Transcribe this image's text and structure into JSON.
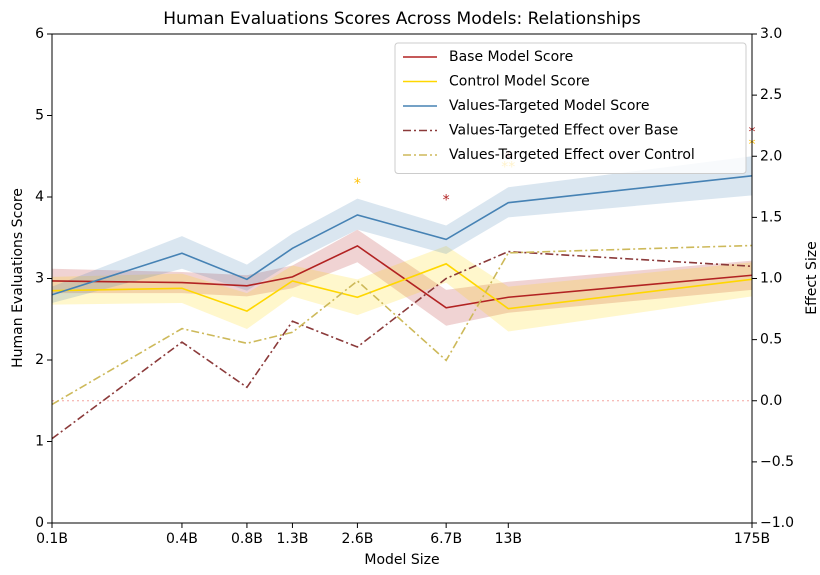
{
  "chart_data": {
    "type": "line",
    "title": "Human Evaluations Scores Across Models: Relationships",
    "x_label": "Model Size",
    "y_label": "Human Evaluations Score",
    "y2_label": "Effect Size",
    "x": [
      0.1,
      0.4,
      0.8,
      1.3,
      2.6,
      6.7,
      13,
      175
    ],
    "xscale": "log",
    "xlim": [
      0.1,
      175
    ],
    "xticks": [
      {
        "value": 0.1,
        "label": "0.1B"
      },
      {
        "value": 0.4,
        "label": "0.4B"
      },
      {
        "value": 0.8,
        "label": "0.8B"
      },
      {
        "value": 1.3,
        "label": "1.3B"
      },
      {
        "value": 2.6,
        "label": "2.6B"
      },
      {
        "value": 6.7,
        "label": "6.7B"
      },
      {
        "value": 13,
        "label": "13B"
      },
      {
        "value": 175,
        "label": "175B"
      }
    ],
    "ylim": [
      0,
      6
    ],
    "yticks": [
      0,
      1,
      2,
      3,
      4,
      5,
      6
    ],
    "y2lim": [
      -1,
      3
    ],
    "y2ticks": [
      {
        "value": -1,
        "label": "−1.0"
      },
      {
        "value": -0.5,
        "label": "−0.5"
      },
      {
        "value": 0,
        "label": "0.0"
      },
      {
        "value": 0.5,
        "label": "0.5"
      },
      {
        "value": 1,
        "label": "1.0"
      },
      {
        "value": 1.5,
        "label": "1.5"
      },
      {
        "value": 2,
        "label": "2.0"
      },
      {
        "value": 2.5,
        "label": "2.5"
      },
      {
        "value": 3,
        "label": "3.0"
      }
    ],
    "legend": "upper right",
    "series": [
      {
        "name": "Base Model Score",
        "color": "#b22222",
        "dash": "solid",
        "values": [
          2.97,
          2.95,
          2.91,
          3.02,
          3.4,
          2.64,
          2.77,
          3.04
        ],
        "lower": [
          2.82,
          2.82,
          2.78,
          2.88,
          3.2,
          2.42,
          2.58,
          2.86
        ],
        "upper": [
          3.12,
          3.08,
          3.04,
          3.16,
          3.6,
          2.86,
          2.96,
          3.22
        ]
      },
      {
        "name": "Control Model Score",
        "color": "#ffd700",
        "dash": "solid",
        "values": [
          2.85,
          2.88,
          2.6,
          2.97,
          2.77,
          3.18,
          2.63,
          2.99
        ],
        "lower": [
          2.68,
          2.7,
          2.38,
          2.78,
          2.55,
          2.95,
          2.35,
          2.78
        ],
        "upper": [
          3.02,
          3.06,
          2.82,
          3.16,
          2.99,
          3.4,
          2.9,
          3.2
        ]
      },
      {
        "name": "Values-Targeted Model Score",
        "color": "#4682b4",
        "dash": "solid",
        "values": [
          2.8,
          3.31,
          2.99,
          3.37,
          3.78,
          3.48,
          3.93,
          4.26
        ],
        "lower": [
          2.7,
          3.12,
          2.85,
          3.2,
          3.6,
          3.3,
          3.75,
          4.02
        ],
        "upper": [
          2.9,
          3.52,
          3.17,
          3.55,
          3.98,
          3.65,
          4.12,
          4.5
        ]
      },
      {
        "name": "Values-Targeted Effect over Base",
        "color": "#8b3a3a",
        "dash": "dashdot",
        "axis": "y2",
        "values": [
          -0.31,
          0.48,
          0.11,
          0.65,
          0.44,
          1.0,
          1.22,
          1.1
        ]
      },
      {
        "name": "Values-Targeted Effect over Control",
        "color": "#cdb95a",
        "dash": "dashdot",
        "axis": "y2",
        "values": [
          -0.03,
          0.59,
          0.47,
          0.56,
          0.98,
          0.33,
          1.21,
          1.27
        ]
      }
    ],
    "hline": {
      "value": 0,
      "axis": "y2",
      "color": "#f4a6a0"
    },
    "annotations": [
      {
        "x": 2.6,
        "y": 4.16,
        "text": "*",
        "color": "#ffc107"
      },
      {
        "x": 6.7,
        "y": 3.96,
        "text": "*",
        "color": "#b22222"
      },
      {
        "x": 13,
        "y": 4.47,
        "text": "*",
        "color": "#b22222"
      },
      {
        "x": 13,
        "y": 4.36,
        "text": "**",
        "color": "#ffc107"
      },
      {
        "x": 175,
        "y": 4.79,
        "text": "*",
        "color": "#b22222"
      },
      {
        "x": 175,
        "y": 4.64,
        "text": "*",
        "color": "#ffc107"
      }
    ]
  }
}
